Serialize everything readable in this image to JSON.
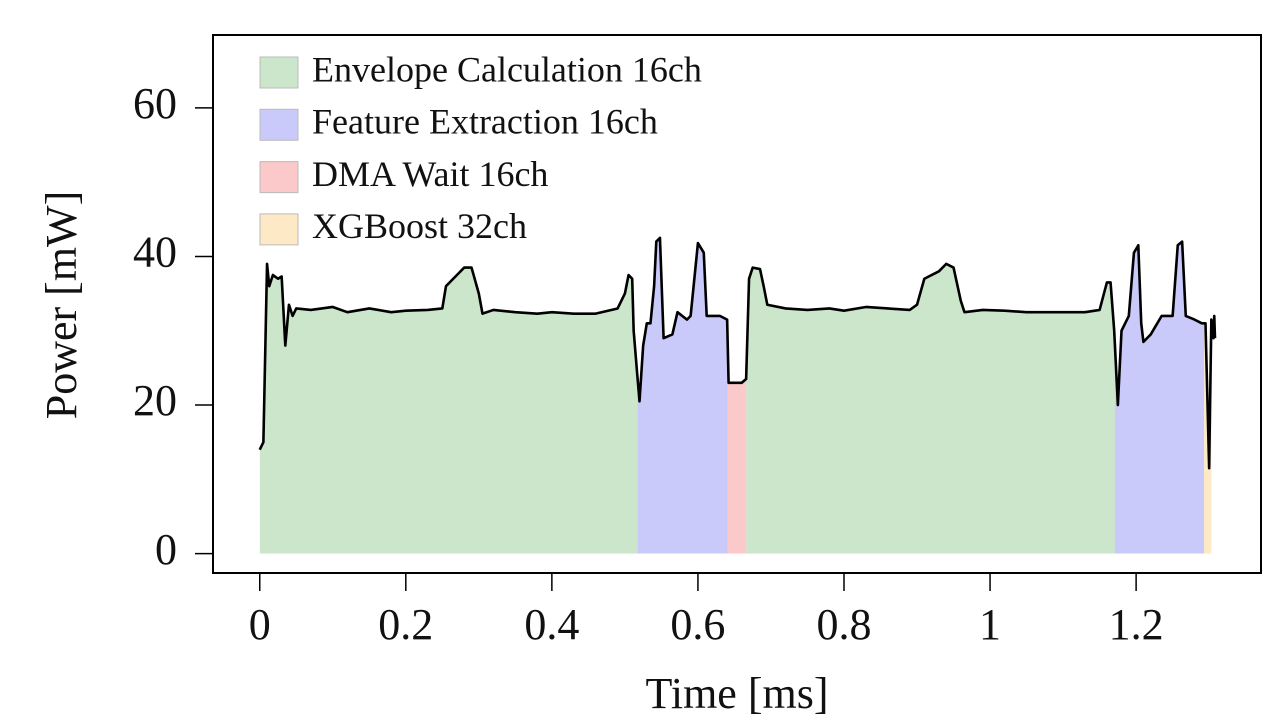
{
  "chart_data": {
    "type": "area",
    "x_label": "Time [ms]",
    "y_label": "Power [mW]",
    "xlim": [
      -0.064,
      1.371
    ],
    "ylim": [
      -2.6,
      69.8
    ],
    "xticks": [
      0,
      0.2,
      0.4,
      0.6,
      0.8,
      1,
      1.2
    ],
    "yticks": [
      0,
      20,
      40,
      60
    ],
    "grid": false,
    "legend": "upper-left",
    "line_color": "#000000",
    "x": [
      0,
      0.005,
      0.01,
      0.013,
      0.018,
      0.025,
      0.03,
      0.035,
      0.04,
      0.045,
      0.05,
      0.07,
      0.1,
      0.12,
      0.15,
      0.18,
      0.2,
      0.23,
      0.25,
      0.255,
      0.27,
      0.28,
      0.29,
      0.3,
      0.305,
      0.32,
      0.35,
      0.38,
      0.4,
      0.43,
      0.46,
      0.49,
      0.5,
      0.505,
      0.51,
      0.512,
      0.517,
      0.52,
      0.525,
      0.53,
      0.535,
      0.54,
      0.543,
      0.548,
      0.553,
      0.565,
      0.572,
      0.585,
      0.59,
      0.6,
      0.608,
      0.612,
      0.63,
      0.64,
      0.642,
      0.66,
      0.666,
      0.67,
      0.675,
      0.685,
      0.69,
      0.695,
      0.72,
      0.75,
      0.78,
      0.8,
      0.83,
      0.86,
      0.89,
      0.9,
      0.91,
      0.93,
      0.94,
      0.95,
      0.96,
      0.965,
      0.99,
      1.02,
      1.05,
      1.08,
      1.11,
      1.13,
      1.15,
      1.16,
      1.165,
      1.17,
      1.175,
      1.18,
      1.185,
      1.19,
      1.197,
      1.203,
      1.207,
      1.21,
      1.22,
      1.235,
      1.25,
      1.257,
      1.263,
      1.268,
      1.28,
      1.29,
      1.295,
      1.3,
      1.303,
      1.306,
      1.307,
      1.308
    ],
    "values": [
      14,
      15,
      39,
      36,
      37.5,
      37,
      37.3,
      28,
      33.5,
      32,
      33,
      32.8,
      33.2,
      32.5,
      33,
      32.5,
      32.7,
      32.8,
      33,
      36,
      37.5,
      38.5,
      38.5,
      35,
      32.3,
      32.8,
      32.5,
      32.3,
      32.5,
      32.3,
      32.3,
      33,
      35,
      37.5,
      37,
      30,
      24,
      20.5,
      28,
      31,
      31,
      36,
      42,
      42.5,
      29,
      29.5,
      32.5,
      31.5,
      32,
      41.8,
      40.5,
      32,
      32,
      31.5,
      23,
      23,
      23.5,
      37,
      38.5,
      38.3,
      36,
      33.5,
      33,
      32.8,
      33,
      32.7,
      33.2,
      33,
      32.8,
      33.5,
      37,
      38,
      39,
      38.5,
      34,
      32.5,
      32.8,
      32.7,
      32.5,
      32.5,
      32.5,
      32.5,
      32.8,
      36.5,
      36.5,
      30,
      20,
      30,
      31,
      32,
      40.5,
      41.5,
      31,
      28.5,
      29.5,
      32,
      32,
      41.5,
      42,
      32,
      31.5,
      31,
      31,
      11.5,
      31.5,
      29,
      32,
      29
    ],
    "phases": [
      {
        "name": "Envelope Calculation 16ch",
        "color": "#cbe6cb",
        "spans": [
          [
            0,
            0.517
          ],
          [
            0.666,
            1.171
          ]
        ]
      },
      {
        "name": "Feature Extraction 16ch",
        "color": "#c9c9fa",
        "spans": [
          [
            0.517,
            0.641
          ],
          [
            1.171,
            1.293
          ]
        ]
      },
      {
        "name": "DMA Wait 16ch",
        "color": "#fbc9c9",
        "spans": [
          [
            0.641,
            0.666
          ]
        ]
      },
      {
        "name": "XGBoost 32ch",
        "color": "#fde9c6",
        "spans": [
          [
            1.293,
            1.303
          ]
        ]
      }
    ]
  }
}
